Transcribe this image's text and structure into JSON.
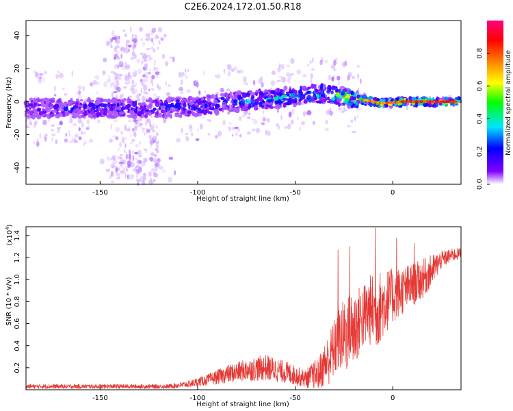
{
  "title": "C2E6.2024.172.01.50.R18",
  "colors": {
    "snr_line": "#e53935",
    "spectrum_core": "#7a00ff",
    "spectrum_halo": "#d9b8ff",
    "axis": "#000000"
  },
  "chart_data": [
    {
      "type": "heatmap",
      "xlabel": "Height of straight line (km)",
      "ylabel": "Frequency (Hz)",
      "xlim": [
        -188,
        35
      ],
      "ylim": [
        -50,
        49
      ],
      "xticks": [
        -150,
        -100,
        -50,
        0
      ],
      "yticks": [
        -40,
        -20,
        0,
        20,
        40
      ],
      "colorbar": {
        "label": "Normalized spectral amplitude",
        "range": [
          0.0,
          1.0
        ],
        "ticks": [
          "0.0",
          "0.2",
          "0.4",
          "0.6",
          "0.8"
        ],
        "colormap": [
          "#ffffff",
          "#8000ff",
          "#0000ff",
          "#00e5ff",
          "#00ff00",
          "#ffff00",
          "#ff8000",
          "#ff0000",
          "#ff0080"
        ]
      },
      "band_center": [
        {
          "x": -188,
          "y": -4
        },
        {
          "x": -160,
          "y": -4
        },
        {
          "x": -130,
          "y": -4
        },
        {
          "x": -100,
          "y": -3
        },
        {
          "x": -80,
          "y": 0
        },
        {
          "x": -60,
          "y": 2
        },
        {
          "x": -45,
          "y": 4
        },
        {
          "x": -35,
          "y": 5
        },
        {
          "x": -25,
          "y": 3
        },
        {
          "x": -15,
          "y": 1
        },
        {
          "x": -5,
          "y": -1
        },
        {
          "x": 5,
          "y": 0
        },
        {
          "x": 20,
          "y": 0
        },
        {
          "x": 35,
          "y": 0
        }
      ],
      "peak_amplitude": [
        {
          "x": -188,
          "v": 0.25
        },
        {
          "x": -150,
          "v": 0.3
        },
        {
          "x": -100,
          "v": 0.35
        },
        {
          "x": -60,
          "v": 0.45
        },
        {
          "x": -40,
          "v": 0.6
        },
        {
          "x": -20,
          "v": 0.75
        },
        {
          "x": 0,
          "v": 0.85
        },
        {
          "x": 35,
          "v": 0.95
        }
      ]
    },
    {
      "type": "line",
      "xlabel": "Height of straight line (km)",
      "ylabel": "SNR (10 * v/v)",
      "y_multiplier": "(x10",
      "y_multiplier_exp": "4",
      "xlim": [
        -188,
        35
      ],
      "ylim": [
        0,
        1.48
      ],
      "xticks": [
        -150,
        -100,
        -50,
        0
      ],
      "yticks": [
        0.2,
        0.4,
        0.6,
        0.8,
        1.0,
        1.2,
        1.4
      ],
      "series": [
        {
          "x": [
            -188,
            -170,
            -150,
            -130,
            -115,
            -105,
            -95,
            -85,
            -75,
            -65,
            -55,
            -45,
            -38,
            -32,
            -28,
            -24,
            -20,
            -16,
            -12,
            -8,
            -4,
            0,
            5,
            10,
            15,
            20,
            25,
            30,
            35
          ],
          "values": [
            0.03,
            0.03,
            0.03,
            0.03,
            0.03,
            0.05,
            0.09,
            0.14,
            0.18,
            0.2,
            0.16,
            0.1,
            0.15,
            0.3,
            0.45,
            0.5,
            0.55,
            0.65,
            0.72,
            0.72,
            0.8,
            0.85,
            0.9,
            0.95,
            1.0,
            1.08,
            1.18,
            1.22,
            1.24
          ],
          "noise": [
            0.02,
            0.02,
            0.02,
            0.02,
            0.02,
            0.03,
            0.05,
            0.08,
            0.1,
            0.12,
            0.1,
            0.08,
            0.15,
            0.25,
            0.3,
            0.35,
            0.38,
            0.3,
            0.32,
            0.35,
            0.3,
            0.25,
            0.22,
            0.2,
            0.18,
            0.15,
            0.08,
            0.06,
            0.05
          ]
        }
      ],
      "peaks": [
        {
          "x": -9,
          "y": 1.47
        },
        {
          "x": -22,
          "y": 1.3
        },
        {
          "x": -28,
          "y": 1.27
        },
        {
          "x": 2,
          "y": 1.38
        },
        {
          "x": 11,
          "y": 1.33
        }
      ]
    }
  ]
}
